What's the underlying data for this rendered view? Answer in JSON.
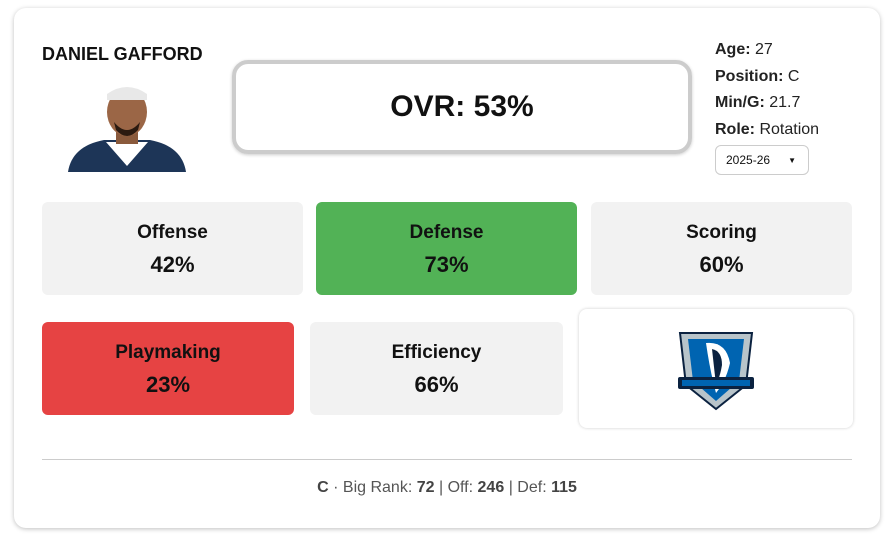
{
  "player": {
    "name": "DANIEL GAFFORD",
    "ovr": "OVR: 53%",
    "info": [
      {
        "label": "Age:",
        "value": "27"
      },
      {
        "label": "Position:",
        "value": "C"
      },
      {
        "label": "Min/G:",
        "value": "21.7"
      },
      {
        "label": "Role:",
        "value": "Rotation"
      }
    ],
    "season": "2025-26"
  },
  "tiles": [
    {
      "label": "Offense",
      "value": "42%"
    },
    {
      "label": "Defense",
      "value": "73%"
    },
    {
      "label": "Scoring",
      "value": "60%"
    },
    {
      "label": "Playmaking",
      "value": "23%"
    },
    {
      "label": "Efficiency",
      "value": "66%"
    }
  ],
  "footer": {
    "position": "C",
    "separator": "·",
    "divider": "|",
    "items": [
      {
        "label": "Big Rank:",
        "value": "72"
      },
      {
        "label": "Off:",
        "value": "246"
      },
      {
        "label": "Def:",
        "value": "115"
      }
    ]
  }
}
